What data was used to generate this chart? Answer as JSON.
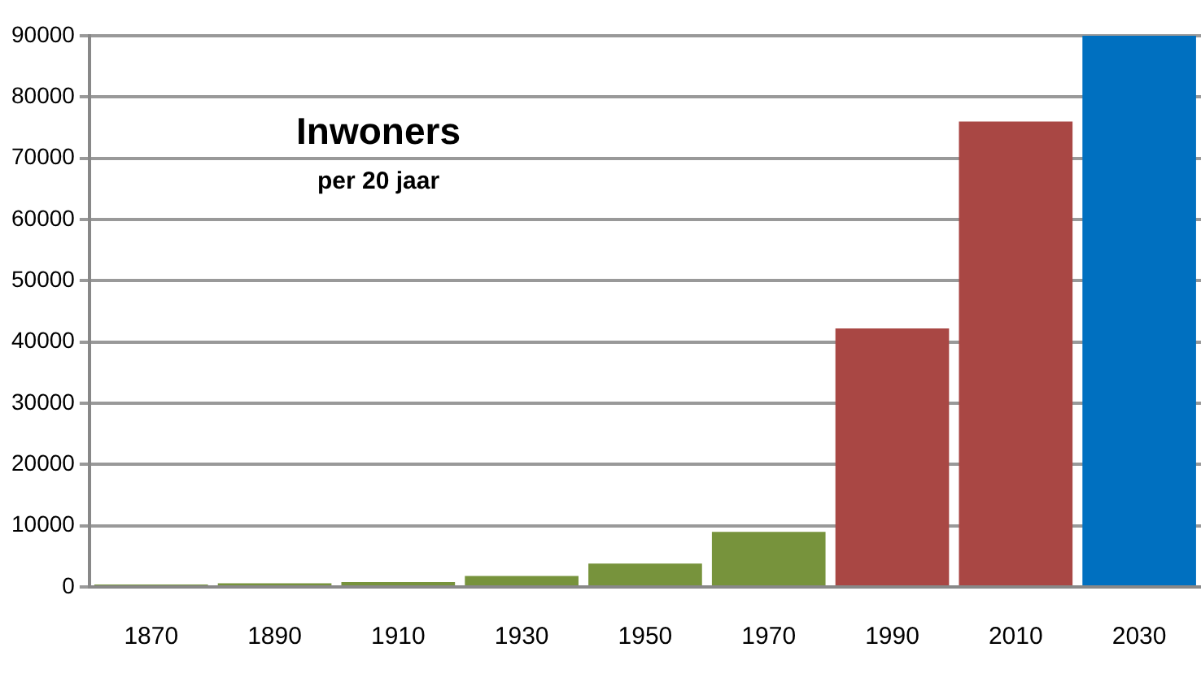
{
  "chart_data": {
    "type": "bar",
    "title": "Inwoners",
    "subtitle": "per 20 jaar",
    "categories": [
      "1870",
      "1890",
      "1910",
      "1930",
      "1950",
      "1970",
      "1990",
      "2010",
      "2030"
    ],
    "values": [
      400,
      600,
      800,
      1800,
      3800,
      9000,
      42200,
      76000,
      90000
    ],
    "colors": [
      "#77933c",
      "#77933c",
      "#77933c",
      "#77933c",
      "#77933c",
      "#77933c",
      "#a94744",
      "#a94744",
      "#0070c0"
    ],
    "ylim": [
      0,
      90000
    ],
    "yticks": [
      0,
      10000,
      20000,
      30000,
      40000,
      50000,
      60000,
      70000,
      80000,
      90000
    ],
    "grid": "y",
    "legend": false
  }
}
